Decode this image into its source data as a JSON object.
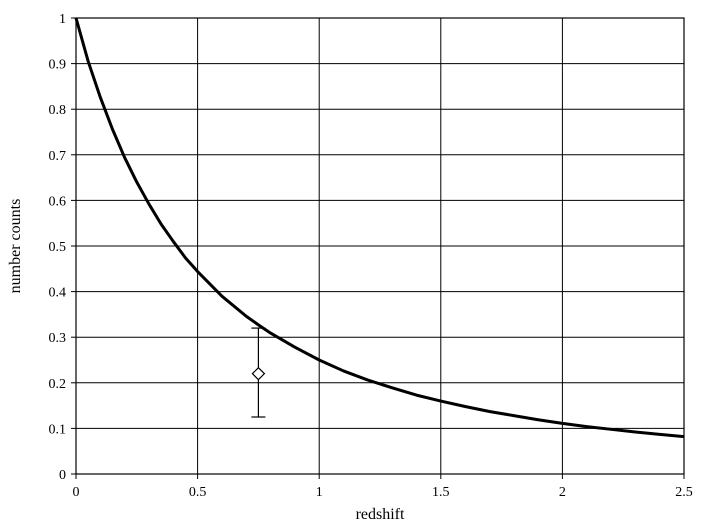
{
  "chart_data": {
    "type": "line",
    "title": "",
    "xlabel": "redshift",
    "ylabel": "number counts",
    "xlim": [
      0,
      2.5
    ],
    "ylim": [
      0,
      1
    ],
    "grid": true,
    "x_ticks": [
      0,
      0.5,
      1,
      1.5,
      2,
      2.5
    ],
    "x_tick_labels": [
      "0",
      "0.5",
      "1",
      "1.5",
      "2",
      "2.5"
    ],
    "y_ticks": [
      0,
      0.1,
      0.2,
      0.3,
      0.4,
      0.5,
      0.6,
      0.7,
      0.8,
      0.9,
      1
    ],
    "y_tick_labels": [
      "0",
      "0.1",
      "0.2",
      "0.3",
      "0.4",
      "0.5",
      "0.6",
      "0.7",
      "0.8",
      "0.9",
      "1"
    ],
    "series": [
      {
        "x": [
          0,
          0.05,
          0.1,
          0.15,
          0.2,
          0.25,
          0.3,
          0.35,
          0.4,
          0.45,
          0.5,
          0.6,
          0.7,
          0.75,
          0.8,
          0.9,
          1.0,
          1.1,
          1.2,
          1.3,
          1.4,
          1.5,
          1.6,
          1.7,
          1.8,
          1.9,
          2.0,
          2.1,
          2.2,
          2.3,
          2.4,
          2.5
        ],
        "y": [
          1.0,
          0.905,
          0.826,
          0.756,
          0.694,
          0.64,
          0.592,
          0.548,
          0.51,
          0.474,
          0.444,
          0.39,
          0.346,
          0.327,
          0.309,
          0.278,
          0.25,
          0.226,
          0.206,
          0.189,
          0.173,
          0.16,
          0.148,
          0.137,
          0.128,
          0.119,
          0.111,
          0.104,
          0.098,
          0.092,
          0.087,
          0.082
        ]
      }
    ],
    "points": [
      {
        "x": 0.75,
        "y": 0.22,
        "y_err_low": 0.125,
        "y_err_high": 0.32,
        "marker": "diamond"
      }
    ]
  }
}
